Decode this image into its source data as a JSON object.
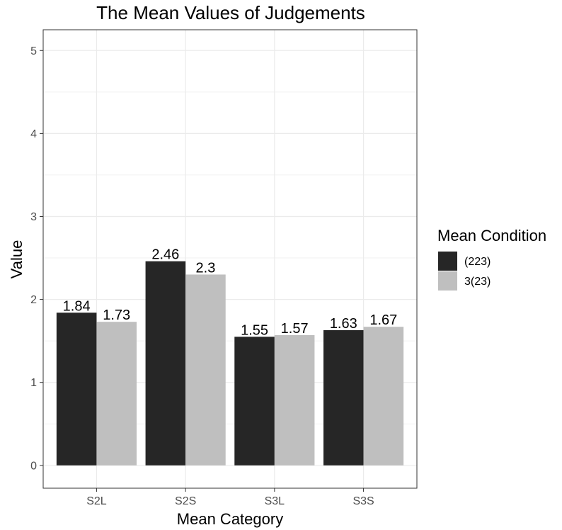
{
  "chart_data": {
    "type": "bar",
    "title": "The Mean Values of Judgements",
    "xlabel": "Mean Category",
    "ylabel": "Value",
    "categories": [
      "S2L",
      "S2S",
      "S3L",
      "S3S"
    ],
    "ylim": [
      0,
      5
    ],
    "yticks": [
      0,
      1,
      2,
      3,
      4,
      5
    ],
    "grid": true,
    "legend": {
      "title": "Mean Condition",
      "placement": "right"
    },
    "series": [
      {
        "name": "(223)",
        "color": "#262626",
        "values": [
          1.84,
          2.46,
          1.55,
          1.63
        ],
        "labels": [
          "1.84",
          "2.46",
          "1.55",
          "1.63"
        ]
      },
      {
        "name": "3(23)",
        "color": "#bfbfbf",
        "values": [
          1.73,
          2.3,
          1.57,
          1.67
        ],
        "labels": [
          "1.73",
          "2.3",
          "1.57",
          "1.67"
        ]
      }
    ]
  }
}
